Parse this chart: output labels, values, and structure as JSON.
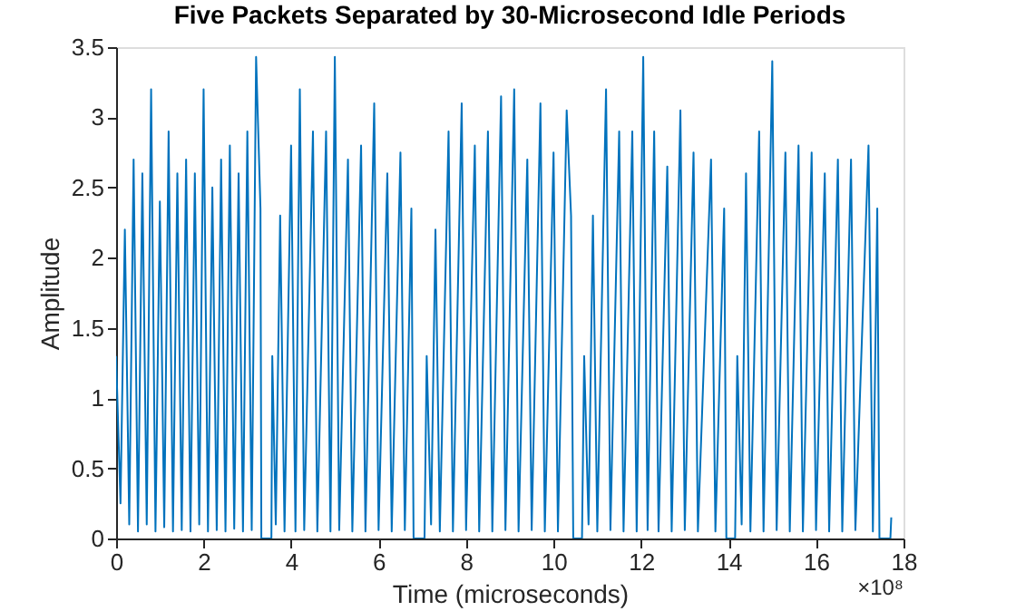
{
  "chart_data": {
    "type": "line",
    "title": "Five Packets Separated by 30-Microsecond Idle Periods",
    "xlabel": "Time (microseconds)",
    "ylabel": "Amplitude",
    "annotations": [
      "×10⁸"
    ],
    "xlim": [
      0,
      18
    ],
    "ylim": [
      0,
      3.5
    ],
    "xticks": [
      0,
      2,
      4,
      6,
      8,
      10,
      12,
      14,
      16,
      18
    ],
    "yticks": [
      0,
      0.5,
      1,
      1.5,
      2,
      2.5,
      3,
      3.5
    ],
    "grid": false,
    "series": [
      {
        "color": "#0072bd",
        "x": [
          0,
          0.1,
          0.2,
          0.3,
          0.4,
          0.5,
          0.6,
          0.7,
          0.8,
          0.9,
          1.0,
          1.1,
          1.2,
          1.3,
          1.4,
          1.5,
          1.6,
          1.7,
          1.8,
          1.9,
          2.0,
          2.1,
          2.2,
          2.3,
          2.4,
          2.5,
          2.6,
          2.7,
          2.8,
          2.9,
          3.0,
          3.1,
          3.2,
          3.3,
          3.32,
          3.55,
          3.57,
          3.65,
          3.75,
          3.85,
          4.0,
          4.1,
          4.2,
          4.3,
          4.5,
          4.6,
          4.8,
          4.9,
          5.0,
          5.1,
          5.3,
          5.4,
          5.6,
          5.7,
          5.9,
          6.0,
          6.2,
          6.3,
          6.5,
          6.6,
          6.75,
          6.8,
          7.05,
          7.1,
          7.2,
          7.3,
          7.4,
          7.6,
          7.7,
          7.9,
          8.0,
          8.2,
          8.3,
          8.5,
          8.6,
          8.8,
          8.9,
          9.1,
          9.2,
          9.4,
          9.5,
          9.7,
          9.8,
          10.0,
          10.1,
          10.3,
          10.4,
          10.45,
          10.65,
          10.7,
          10.8,
          10.9,
          11.0,
          11.2,
          11.3,
          11.5,
          11.6,
          11.8,
          11.9,
          12.05,
          12.15,
          12.3,
          12.4,
          12.6,
          12.7,
          12.9,
          13.0,
          13.2,
          13.3,
          13.6,
          13.7,
          13.9,
          13.95,
          14.15,
          14.2,
          14.3,
          14.4,
          14.5,
          14.7,
          14.8,
          15.0,
          15.1,
          15.3,
          15.4,
          15.6,
          15.7,
          15.9,
          16.0,
          16.2,
          16.3,
          16.5,
          16.6,
          16.8,
          16.9,
          17.2,
          17.3,
          17.4,
          17.45,
          17.7,
          17.72
        ],
        "values": [
          1.3,
          0.25,
          2.2,
          0.1,
          2.7,
          0.05,
          2.6,
          0.1,
          3.2,
          0.05,
          2.4,
          0.08,
          2.9,
          0.05,
          2.6,
          0.06,
          2.7,
          0.05,
          2.6,
          0.1,
          3.2,
          0.05,
          2.5,
          0.06,
          2.7,
          0.05,
          2.8,
          0.07,
          2.6,
          0.05,
          2.9,
          0.06,
          3.43,
          2.35,
          0,
          0,
          1.3,
          0.1,
          2.3,
          0.05,
          2.8,
          0.05,
          3.2,
          0.06,
          2.9,
          0.05,
          2.9,
          0.05,
          3.43,
          0.06,
          2.7,
          0.05,
          2.8,
          0.05,
          3.1,
          0.06,
          2.6,
          0.05,
          2.75,
          0.06,
          2.35,
          0,
          0,
          1.3,
          0.1,
          2.2,
          0.05,
          2.9,
          0.05,
          3.1,
          0.06,
          2.8,
          0.05,
          2.9,
          0.05,
          3.15,
          0.06,
          3.2,
          0.05,
          2.7,
          0.06,
          3.1,
          0.05,
          2.75,
          0.05,
          3.05,
          2.3,
          0,
          0,
          1.3,
          0.1,
          2.3,
          0.05,
          3.2,
          0.06,
          2.9,
          0.05,
          2.9,
          0.05,
          3.43,
          0.06,
          2.9,
          0.05,
          2.65,
          0.05,
          3.05,
          0.06,
          2.75,
          0.05,
          2.7,
          0.05,
          2.35,
          0,
          0,
          1.3,
          0.1,
          2.6,
          0.05,
          2.9,
          0.05,
          3.4,
          0.06,
          2.75,
          0.05,
          2.8,
          0.05,
          2.75,
          0.06,
          2.6,
          0.05,
          2.7,
          0.05,
          2.7,
          0.06,
          2.8,
          0.05,
          2.35,
          0,
          0,
          0.15
        ]
      }
    ]
  }
}
